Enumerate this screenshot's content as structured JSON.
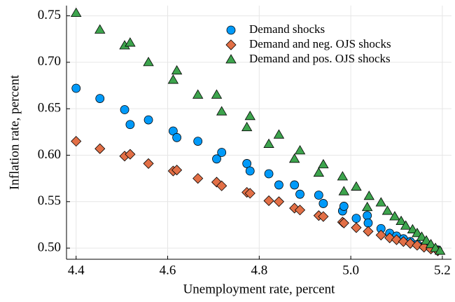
{
  "chart_data": {
    "type": "scatter",
    "xlabel": "Unemployment rate, percent",
    "ylabel": "Inflation rate, percent",
    "xlim": [
      4.379,
      5.22
    ],
    "ylim": [
      0.488,
      0.761
    ],
    "xticks": [
      4.4,
      4.6,
      4.8,
      {
        "value": 5.0,
        "label": "5.0"
      },
      5.2
    ],
    "yticks": [
      {
        "value": 0.5,
        "label": "0.50"
      },
      0.55,
      {
        "value": 0.6,
        "label": "0.60"
      },
      0.65,
      {
        "value": 0.7,
        "label": "0.70"
      },
      0.75
    ],
    "grid": true,
    "legend": "top-right",
    "series": [
      {
        "name": "Demand shocks",
        "color": "#009af9",
        "marker": "circle",
        "x": [
          4.4,
          4.452,
          4.506,
          4.518,
          4.558,
          4.612,
          4.62,
          4.666,
          4.707,
          4.718,
          4.773,
          4.78,
          4.821,
          4.843,
          4.877,
          4.889,
          4.93,
          4.94,
          4.982,
          4.985,
          5.012,
          5.036,
          5.038,
          5.066,
          5.085,
          5.1,
          5.115,
          5.13,
          5.145,
          5.16,
          5.175,
          5.19
        ],
        "values": [
          0.672,
          0.661,
          0.649,
          0.633,
          0.638,
          0.626,
          0.619,
          0.615,
          0.596,
          0.603,
          0.591,
          0.583,
          0.58,
          0.568,
          0.568,
          0.558,
          0.557,
          0.548,
          0.54,
          0.545,
          0.532,
          0.535,
          0.527,
          0.521,
          0.516,
          0.513,
          0.51,
          0.507,
          0.504,
          0.502,
          0.5,
          0.498
        ]
      },
      {
        "name": "Demand and neg. OJS shocks",
        "color": "#e26f46",
        "marker": "diamond",
        "x": [
          4.4,
          4.452,
          4.506,
          4.518,
          4.558,
          4.612,
          4.62,
          4.666,
          4.707,
          4.718,
          4.773,
          4.78,
          4.821,
          4.843,
          4.877,
          4.889,
          4.93,
          4.94,
          4.982,
          4.985,
          5.012,
          5.038,
          5.066,
          5.085,
          5.1,
          5.115,
          5.13,
          5.145,
          5.16,
          5.175,
          5.19
        ],
        "values": [
          0.615,
          0.607,
          0.599,
          0.601,
          0.591,
          0.583,
          0.584,
          0.575,
          0.571,
          0.567,
          0.56,
          0.559,
          0.551,
          0.55,
          0.543,
          0.541,
          0.535,
          0.534,
          0.528,
          0.527,
          0.522,
          0.518,
          0.514,
          0.511,
          0.509,
          0.507,
          0.505,
          0.503,
          0.501,
          0.499,
          0.497
        ]
      },
      {
        "name": "Demand and pos. OJS shocks",
        "color": "#3da44d",
        "marker": "triangle",
        "x": [
          4.4,
          4.452,
          4.506,
          4.518,
          4.558,
          4.612,
          4.62,
          4.666,
          4.707,
          4.718,
          4.773,
          4.78,
          4.821,
          4.843,
          4.877,
          4.889,
          4.93,
          4.94,
          4.982,
          4.985,
          5.012,
          5.036,
          5.04,
          5.066,
          5.08,
          5.096,
          5.11,
          5.12,
          5.135,
          5.145,
          5.155,
          5.165,
          5.175,
          5.185,
          5.195
        ],
        "values": [
          0.753,
          0.735,
          0.718,
          0.721,
          0.7,
          0.681,
          0.691,
          0.665,
          0.665,
          0.647,
          0.63,
          0.642,
          0.612,
          0.622,
          0.596,
          0.605,
          0.581,
          0.59,
          0.577,
          0.561,
          0.566,
          0.544,
          0.556,
          0.549,
          0.54,
          0.534,
          0.529,
          0.524,
          0.52,
          0.516,
          0.512,
          0.508,
          0.504,
          0.5,
          0.497
        ]
      }
    ]
  }
}
